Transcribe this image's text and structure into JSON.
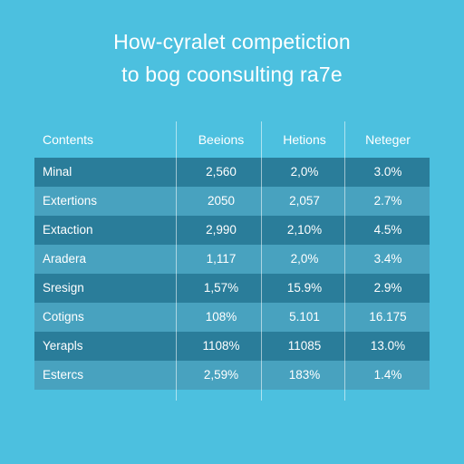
{
  "title_lines": [
    "How-cyralet competiction",
    "to bog coonsulting ra7e"
  ],
  "chart_data": {
    "type": "table",
    "title": "How-cyralet competiction to bog coonsulting ra7e",
    "columns": [
      "Contents",
      "Beeions",
      "Hetions",
      "Neteger"
    ],
    "rows": [
      [
        "Minal",
        "2,560",
        "2,0%",
        "3.0%"
      ],
      [
        "Extertions",
        "2050",
        "2,057",
        "2.7%"
      ],
      [
        "Extaction",
        "2,990",
        "2,10%",
        "4.5%"
      ],
      [
        "Aradera",
        "1,117",
        "2,0%",
        "3.4%"
      ],
      [
        "Sresign",
        "1,57%",
        "15.9%",
        "2.9%"
      ],
      [
        "Cotigns",
        "108%",
        "5.101",
        "16.175"
      ],
      [
        "Yerapls",
        "1108%",
        "11085",
        "13.0%"
      ],
      [
        "Estercs",
        "2,59%",
        "183%",
        "1.4%"
      ]
    ]
  },
  "colors": {
    "background": "#4cc0df",
    "row_dark": "#2a7d9a",
    "row_light": "#48a2bf",
    "text": "#ffffff"
  }
}
